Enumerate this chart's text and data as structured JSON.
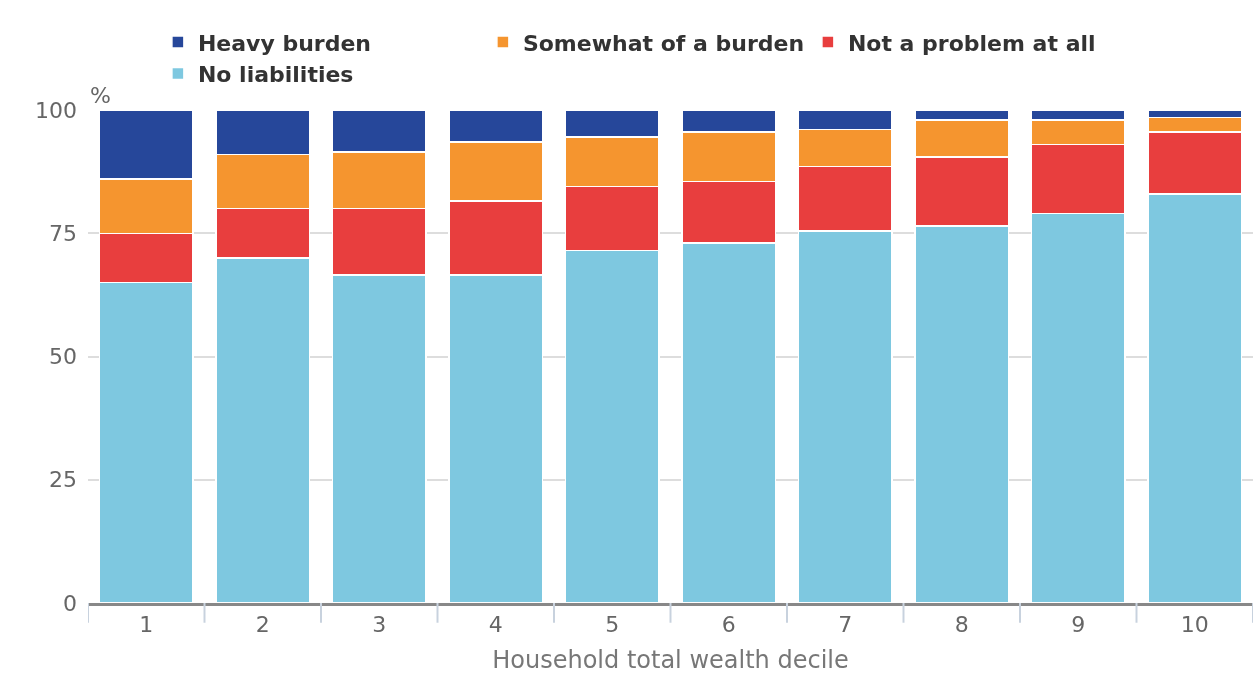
{
  "chart_data": {
    "type": "bar",
    "stacked": true,
    "xlabel": "Household total wealth decile",
    "ylabel": "%",
    "categories": [
      "1",
      "2",
      "3",
      "4",
      "5",
      "6",
      "7",
      "8",
      "9",
      "10"
    ],
    "series": [
      {
        "name": "No liabilities",
        "color": "#7ec8e0",
        "values": [
          65,
          70,
          66.5,
          66.5,
          71.5,
          73,
          75.5,
          76.5,
          79,
          83
        ]
      },
      {
        "name": "Not a problem at all",
        "color": "#e83e3e",
        "values": [
          10,
          10,
          13.5,
          15,
          13,
          12.5,
          13,
          14,
          14,
          12.5
        ]
      },
      {
        "name": "Somewhat of a burden",
        "color": "#f5952f",
        "values": [
          11,
          11,
          11.5,
          12,
          10,
          10,
          7.5,
          7.5,
          5,
          3
        ]
      },
      {
        "name": "Heavy burden",
        "color": "#26479a",
        "values": [
          14,
          9,
          8.5,
          6.5,
          5.5,
          4.5,
          4,
          2,
          2,
          1.5
        ]
      }
    ],
    "ylim": [
      0,
      100
    ],
    "yticks": [
      0,
      25,
      50,
      75,
      100
    ],
    "grid": "y",
    "legend": "top left"
  }
}
